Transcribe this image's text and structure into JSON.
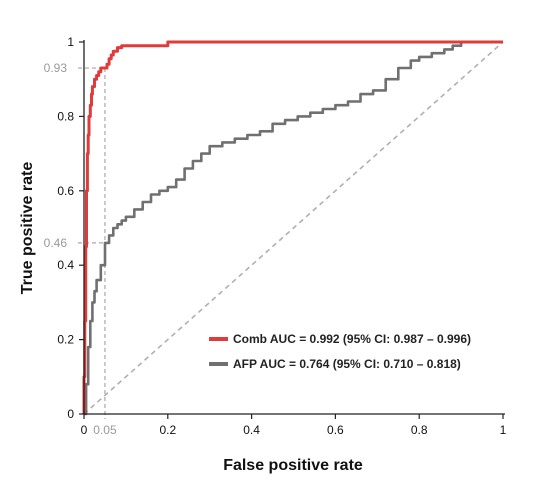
{
  "chart_data": {
    "type": "line",
    "title": "",
    "xlabel": "False positive rate",
    "ylabel": "True positive rate",
    "xlim": [
      0,
      1
    ],
    "ylim": [
      0,
      1
    ],
    "grid": false,
    "legend_position": "lower-right",
    "x_ticks": [
      {
        "value": 0,
        "label": "0"
      },
      {
        "value": 0.2,
        "label": "0.2"
      },
      {
        "value": 0.4,
        "label": "0.4"
      },
      {
        "value": 0.6,
        "label": "0.6"
      },
      {
        "value": 0.8,
        "label": "0.8"
      },
      {
        "value": 1,
        "label": "1"
      }
    ],
    "y_ticks": [
      {
        "value": 0,
        "label": "0"
      },
      {
        "value": 0.2,
        "label": "0.2"
      },
      {
        "value": 0.4,
        "label": "0.4"
      },
      {
        "value": 0.6,
        "label": "0.6"
      },
      {
        "value": 0.8,
        "label": "0.8"
      },
      {
        "value": 1,
        "label": "1"
      }
    ],
    "annotations": [
      {
        "axis": "x",
        "value": 0.05,
        "label": "0.05"
      },
      {
        "axis": "y",
        "value": 0.93,
        "label": "0.93"
      },
      {
        "axis": "y",
        "value": 0.46,
        "label": "0.46"
      }
    ],
    "reference_line": {
      "x": [
        0,
        1
      ],
      "y": [
        0,
        1
      ],
      "color": "#b0b0b0",
      "style": "dashed"
    },
    "series": [
      {
        "name": "Comb AUC = 0.992 (95% CI: 0.987 – 0.996)",
        "color": "#e03b3b",
        "x": [
          0,
          0,
          0.002,
          0.004,
          0.006,
          0.008,
          0.01,
          0.012,
          0.015,
          0.018,
          0.02,
          0.025,
          0.03,
          0.035,
          0.04,
          0.05,
          0.055,
          0.06,
          0.065,
          0.07,
          0.08,
          0.09,
          0.1,
          0.2,
          0.4,
          0.6,
          0.8,
          0.9,
          1
        ],
        "y": [
          0,
          0.1,
          0.25,
          0.45,
          0.6,
          0.7,
          0.75,
          0.8,
          0.83,
          0.86,
          0.88,
          0.9,
          0.91,
          0.92,
          0.93,
          0.93,
          0.94,
          0.955,
          0.965,
          0.975,
          0.985,
          0.99,
          0.99,
          1,
          1,
          1,
          1,
          1,
          1
        ]
      },
      {
        "name": "AFP AUC = 0.764 (95% CI: 0.710 – 0.818)",
        "color": "#707070",
        "x": [
          0,
          0.005,
          0.01,
          0.015,
          0.02,
          0.025,
          0.03,
          0.04,
          0.05,
          0.06,
          0.07,
          0.08,
          0.09,
          0.1,
          0.12,
          0.14,
          0.16,
          0.18,
          0.2,
          0.22,
          0.24,
          0.26,
          0.28,
          0.3,
          0.33,
          0.36,
          0.39,
          0.42,
          0.45,
          0.48,
          0.51,
          0.54,
          0.57,
          0.6,
          0.63,
          0.66,
          0.69,
          0.72,
          0.75,
          0.78,
          0.8,
          0.83,
          0.86,
          0.88,
          0.9,
          1
        ],
        "y": [
          0,
          0.08,
          0.18,
          0.25,
          0.3,
          0.33,
          0.36,
          0.4,
          0.46,
          0.48,
          0.5,
          0.51,
          0.52,
          0.53,
          0.55,
          0.57,
          0.59,
          0.6,
          0.61,
          0.63,
          0.66,
          0.68,
          0.7,
          0.72,
          0.73,
          0.74,
          0.75,
          0.76,
          0.78,
          0.79,
          0.8,
          0.81,
          0.82,
          0.83,
          0.84,
          0.86,
          0.87,
          0.9,
          0.93,
          0.95,
          0.96,
          0.97,
          0.98,
          0.99,
          1,
          1
        ]
      }
    ]
  }
}
